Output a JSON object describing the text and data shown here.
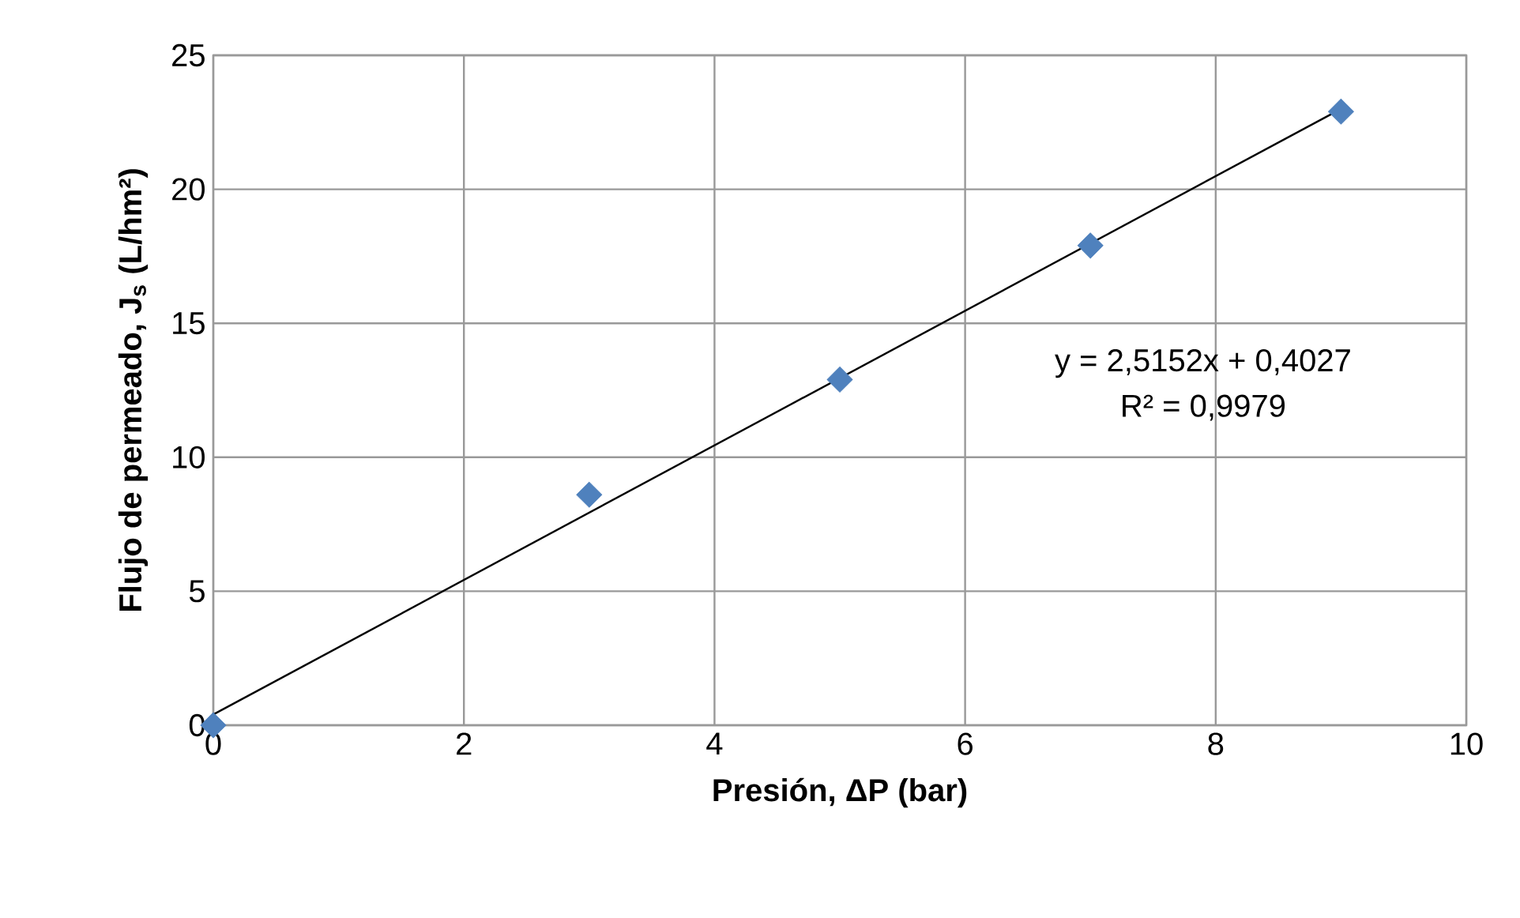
{
  "chart_data": {
    "type": "scatter",
    "xlabel": "Presión, ΔP (bar)",
    "ylabel": "Flujo de permeado, J$_{s}$ (L/hm²)",
    "xlim": [
      0,
      10
    ],
    "xticks": [
      0,
      2,
      4,
      6,
      8,
      10
    ],
    "ylim": [
      0,
      25
    ],
    "yticks": [
      0,
      5,
      10,
      15,
      20,
      25
    ],
    "grid": true,
    "series": [
      {
        "color": "#4f81bd",
        "marker": "diamond",
        "x": [
          0,
          3,
          5,
          7,
          9
        ],
        "values": [
          0,
          8.6,
          12.9,
          17.9,
          22.9
        ]
      },
      {
        "type": "line",
        "color": "#000000",
        "marker": "none",
        "line_style": "solid",
        "x": [
          0,
          9
        ],
        "values": [
          0.4,
          23.0
        ]
      }
    ],
    "annotations": [
      "y = 2,5152x + 0,4027",
      "R² = 0,9979"
    ]
  }
}
